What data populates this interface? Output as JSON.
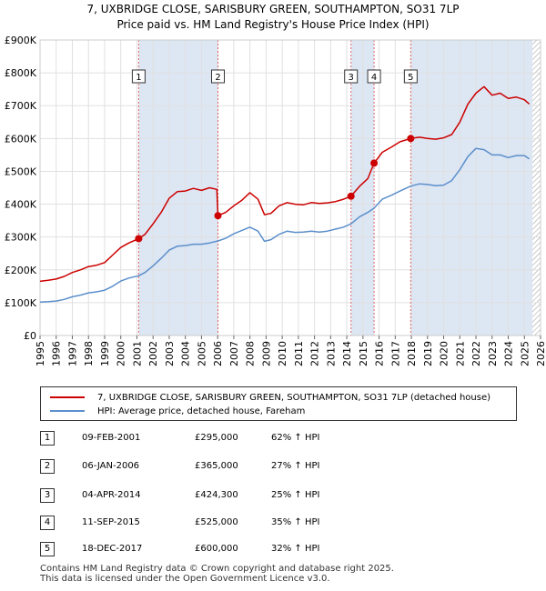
{
  "title_line1": "7, UXBRIDGE CLOSE, SARISBURY GREEN, SOUTHAMPTON, SO31 7LP",
  "title_line2": "Price paid vs. HM Land Registry's House Price Index (HPI)",
  "colors": {
    "property": "#cc0000",
    "hpi": "#5b8fcc",
    "shade": "#dde6f3",
    "grid": "#e0e0e0",
    "marker_box": "#333333",
    "vline": "#dd6666"
  },
  "legend": {
    "property": "7, UXBRIDGE CLOSE, SARISBURY GREEN, SOUTHAMPTON, SO31 7LP (detached house)",
    "hpi": "HPI: Average price, detached house, Fareham"
  },
  "sales": [
    {
      "num": "1",
      "date": "09-FEB-2001",
      "price": "£295,000",
      "hpi": "62% ↑ HPI"
    },
    {
      "num": "2",
      "date": "06-JAN-2006",
      "price": "£365,000",
      "hpi": "27% ↑ HPI"
    },
    {
      "num": "3",
      "date": "04-APR-2014",
      "price": "£424,300",
      "hpi": "25% ↑ HPI"
    },
    {
      "num": "4",
      "date": "11-SEP-2015",
      "price": "£525,000",
      "hpi": "35% ↑ HPI"
    },
    {
      "num": "5",
      "date": "18-DEC-2017",
      "price": "£600,000",
      "hpi": "32% ↑ HPI"
    }
  ],
  "footer_line1": "Contains HM Land Registry data © Crown copyright and database right 2025.",
  "footer_line2": "This data is licensed under the Open Government Licence v3.0.",
  "chart_data": {
    "type": "line",
    "title": "Price paid vs. HM Land Registry's House Price Index (HPI)",
    "xlim": [
      1995,
      2026
    ],
    "ylim": [
      0,
      900000
    ],
    "x_ticks": [
      "1995",
      "1996",
      "1997",
      "1998",
      "1999",
      "2000",
      "2001",
      "2002",
      "2003",
      "2004",
      "2005",
      "2006",
      "2007",
      "2008",
      "2009",
      "2010",
      "2011",
      "2012",
      "2013",
      "2014",
      "2015",
      "2016",
      "2017",
      "2018",
      "2019",
      "2020",
      "2021",
      "2022",
      "2023",
      "2024",
      "2025",
      "2026"
    ],
    "y_ticks": [
      {
        "value": 0,
        "label": "£0"
      },
      {
        "value": 100000,
        "label": "£100K"
      },
      {
        "value": 200000,
        "label": "£200K"
      },
      {
        "value": 300000,
        "label": "£300K"
      },
      {
        "value": 400000,
        "label": "£400K"
      },
      {
        "value": 500000,
        "label": "£500K"
      },
      {
        "value": 600000,
        "label": "£600K"
      },
      {
        "value": 700000,
        "label": "£700K"
      },
      {
        "value": 800000,
        "label": "£800K"
      },
      {
        "value": 900000,
        "label": "£900K"
      }
    ],
    "shaded_spans": [
      [
        2001.11,
        2006.02
      ],
      [
        2014.26,
        2015.69
      ],
      [
        2017.96,
        2025.5
      ]
    ],
    "hatched_from": 2025.5,
    "sales_points": [
      {
        "label": "1",
        "x": 2001.11,
        "y": 295000
      },
      {
        "label": "2",
        "x": 2006.02,
        "y": 365000
      },
      {
        "label": "3",
        "x": 2014.26,
        "y": 424300
      },
      {
        "label": "4",
        "x": 2015.69,
        "y": 525000
      },
      {
        "label": "5",
        "x": 2017.96,
        "y": 600000
      }
    ],
    "series": [
      {
        "name": "7, UXBRIDGE CLOSE, SARISBURY GREEN, SOUTHAMPTON, SO31 7LP (detached house)",
        "x": [
          1995.0,
          1995.5,
          1996.0,
          1996.5,
          1997.0,
          1997.5,
          1998.0,
          1998.5,
          1999.0,
          1999.5,
          2000.0,
          2000.5,
          2001.11,
          2001.5,
          2002.0,
          2002.5,
          2003.0,
          2003.5,
          2004.0,
          2004.5,
          2005.0,
          2005.5,
          2005.95,
          2006.02,
          2006.5,
          2007.0,
          2007.5,
          2008.0,
          2008.5,
          2008.9,
          2009.3,
          2009.8,
          2010.3,
          2010.8,
          2011.3,
          2011.8,
          2012.3,
          2012.8,
          2013.3,
          2013.8,
          2014.26,
          2014.8,
          2015.3,
          2015.69,
          2016.2,
          2016.8,
          2017.3,
          2017.96,
          2018.5,
          2019.0,
          2019.5,
          2020.0,
          2020.5,
          2021.0,
          2021.5,
          2022.0,
          2022.5,
          2023.0,
          2023.5,
          2024.0,
          2024.5,
          2025.0,
          2025.3
        ],
        "values": [
          165000,
          168000,
          172000,
          180000,
          192000,
          200000,
          210000,
          214000,
          222000,
          245000,
          268000,
          282000,
          295000,
          308000,
          340000,
          375000,
          418000,
          438000,
          440000,
          448000,
          442000,
          450000,
          445000,
          365000,
          375000,
          395000,
          412000,
          435000,
          415000,
          368000,
          372000,
          395000,
          405000,
          400000,
          398000,
          405000,
          402000,
          404000,
          408000,
          415000,
          424300,
          455000,
          478000,
          525000,
          558000,
          575000,
          590000,
          600000,
          604000,
          600000,
          598000,
          602000,
          612000,
          650000,
          705000,
          738000,
          758000,
          732000,
          738000,
          722000,
          726000,
          718000,
          705000
        ]
      },
      {
        "name": "HPI: Average price, detached house, Fareham",
        "x": [
          1995.0,
          1995.5,
          1996.0,
          1996.5,
          1997.0,
          1997.5,
          1998.0,
          1998.5,
          1999.0,
          1999.5,
          2000.0,
          2000.5,
          2001.11,
          2001.5,
          2002.0,
          2002.5,
          2003.0,
          2003.5,
          2004.0,
          2004.5,
          2005.0,
          2005.5,
          2006.02,
          2006.5,
          2007.0,
          2007.5,
          2008.0,
          2008.5,
          2008.9,
          2009.3,
          2009.8,
          2010.3,
          2010.8,
          2011.3,
          2011.8,
          2012.3,
          2012.8,
          2013.3,
          2013.8,
          2014.26,
          2014.8,
          2015.3,
          2015.69,
          2016.2,
          2016.8,
          2017.3,
          2017.96,
          2018.5,
          2019.0,
          2019.5,
          2020.0,
          2020.5,
          2021.0,
          2021.5,
          2022.0,
          2022.5,
          2023.0,
          2023.5,
          2024.0,
          2024.5,
          2025.0,
          2025.3
        ],
        "values": [
          102000,
          103000,
          105000,
          110000,
          118000,
          123000,
          130000,
          133000,
          138000,
          150000,
          166000,
          175000,
          182000,
          192000,
          212000,
          235000,
          260000,
          272000,
          274000,
          278000,
          278000,
          282000,
          288000,
          296000,
          310000,
          320000,
          330000,
          318000,
          287000,
          292000,
          308000,
          318000,
          314000,
          315000,
          318000,
          315000,
          318000,
          324000,
          330000,
          340000,
          362000,
          375000,
          388000,
          415000,
          428000,
          440000,
          455000,
          462000,
          460000,
          456000,
          458000,
          472000,
          505000,
          545000,
          570000,
          566000,
          550000,
          550000,
          542000,
          548000,
          548000,
          538000
        ]
      }
    ]
  }
}
